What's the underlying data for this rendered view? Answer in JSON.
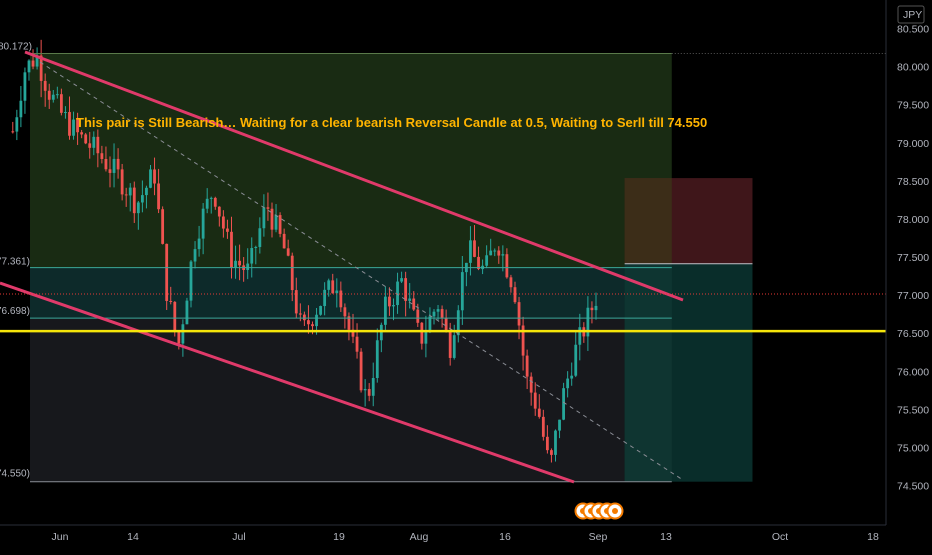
{
  "currency": "JPY",
  "annotation": "This pair is Still Bearish… Waiting for a clear bearish Reversal Candle at 0.5, Waiting to Serll till 74.550",
  "colors": {
    "background": "#000000",
    "up": "#26a69a",
    "down": "#ef5350",
    "channel": "#e03a6a",
    "support": "#f5e50a",
    "annotation": "#ffb400",
    "current_price": "#e53935",
    "entry": "#b2b5be",
    "target": "#089981"
  },
  "price_tags": {
    "stop": "78.536",
    "entry": "77.412",
    "current": "77.014",
    "support": "76.526",
    "target": "74.550"
  },
  "fib_labels": {
    "top": "80.172)",
    "level_1": "77.361)",
    "level_2": "76.698)",
    "bottom": "74.550)"
  },
  "chart_data": {
    "type": "candlestick",
    "symbol_currency": "JPY",
    "y_axis": {
      "ticks": [
        "80.500",
        "80.000",
        "79.500",
        "79.000",
        "78.500",
        "78.000",
        "77.500",
        "77.000",
        "76.500",
        "76.000",
        "75.500",
        "75.000",
        "74.500"
      ],
      "ylim": [
        74.3,
        80.65
      ]
    },
    "x_axis": {
      "ticks": [
        "Jun",
        "14",
        "Jul",
        "19",
        "Aug",
        "16",
        "Sep",
        "13",
        "Oct",
        "18"
      ]
    },
    "close_path": [
      {
        "date": "May 24",
        "price": 79.15
      },
      {
        "date": "May 26",
        "price": 79.95
      },
      {
        "date": "May 28",
        "price": 80.15
      },
      {
        "date": "May 30",
        "price": 79.7
      },
      {
        "date": "Jun 1",
        "price": 79.4
      },
      {
        "date": "Jun 4",
        "price": 79.1
      },
      {
        "date": "Jun 7",
        "price": 78.9
      },
      {
        "date": "Jun 11",
        "price": 78.55
      },
      {
        "date": "Jun 14",
        "price": 78.2
      },
      {
        "date": "Jun 17",
        "price": 78.6
      },
      {
        "date": "Jun 19",
        "price": 77.1
      },
      {
        "date": "Jun 21",
        "price": 76.3
      },
      {
        "date": "Jun 24",
        "price": 77.8
      },
      {
        "date": "Jun 27",
        "price": 78.4
      },
      {
        "date": "Jun 30",
        "price": 77.5
      },
      {
        "date": "Jul 3",
        "price": 77.3
      },
      {
        "date": "Jul 6",
        "price": 78.2
      },
      {
        "date": "Jul 9",
        "price": 77.6
      },
      {
        "date": "Jul 12",
        "price": 76.5
      },
      {
        "date": "Jul 15",
        "price": 76.9
      },
      {
        "date": "Jul 18",
        "price": 77.2
      },
      {
        "date": "Jul 21",
        "price": 76.2
      },
      {
        "date": "Jul 23",
        "price": 75.6
      },
      {
        "date": "Jul 26",
        "price": 76.8
      },
      {
        "date": "Jul 29",
        "price": 77.2
      },
      {
        "date": "Aug 1",
        "price": 76.4
      },
      {
        "date": "Aug 4",
        "price": 76.9
      },
      {
        "date": "Aug 6",
        "price": 76.3
      },
      {
        "date": "Aug 9",
        "price": 77.6
      },
      {
        "date": "Aug 12",
        "price": 77.3
      },
      {
        "date": "Aug 14",
        "price": 77.75
      },
      {
        "date": "Aug 17",
        "price": 77.1
      },
      {
        "date": "Aug 19",
        "price": 75.9
      },
      {
        "date": "Aug 21",
        "price": 75.5
      },
      {
        "date": "Aug 23",
        "price": 74.7
      },
      {
        "date": "Aug 25",
        "price": 75.6
      },
      {
        "date": "Aug 27",
        "price": 76.2
      },
      {
        "date": "Aug 29",
        "price": 76.6
      },
      {
        "date": "Aug 31",
        "price": 77.01
      }
    ],
    "levels": {
      "fib_top": 80.172,
      "fib_1": 77.361,
      "fib_2": 76.698,
      "fib_bottom": 74.55,
      "support": 76.526,
      "current": 77.014,
      "stop": 78.536,
      "entry": 77.412,
      "target": 74.55
    }
  }
}
